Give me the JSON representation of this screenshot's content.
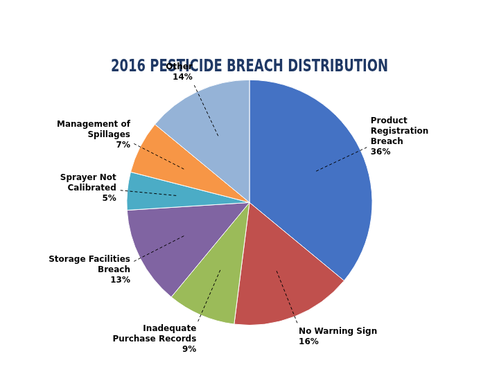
{
  "chart_data": {
    "type": "pie",
    "title": "2016 PESTICIDE BREACH DISTRIBUTION",
    "categories": [
      "Product\nRegistration\nBreach\n36%",
      "No Warning Sign\n16%",
      "Inadequate\nPurchase Records\n9%",
      "Storage Facilities\nBreach\n13%",
      "Sprayer Not\nCalibrated\n5%",
      "Management of\nSpillages\n7%",
      "Other\n14%"
    ],
    "values": [
      36,
      16,
      9,
      13,
      5,
      7,
      14
    ],
    "colors": [
      "#4472C4",
      "#C0504D",
      "#9BBB59",
      "#8064A2",
      "#4BACC6",
      "#F79646",
      "#95B3D7"
    ]
  }
}
